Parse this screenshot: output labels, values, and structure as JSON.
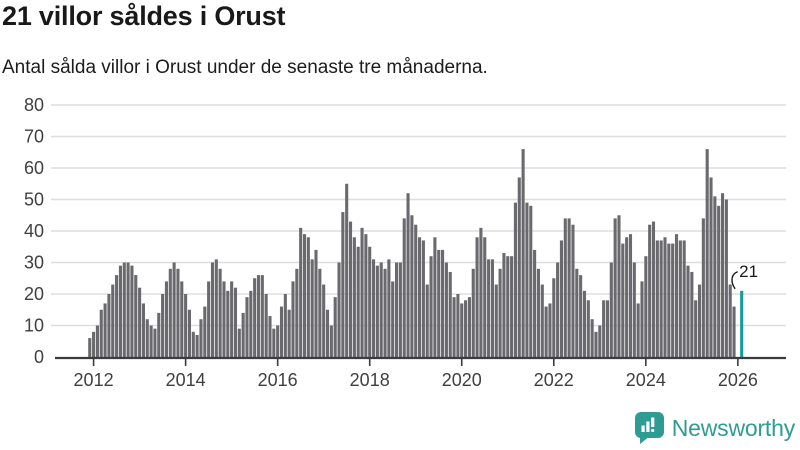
{
  "header": {
    "title": "21 villor såldes i Orust",
    "subtitle": "Antal sålda villor i Orust under de senaste tre månaderna."
  },
  "footer": {
    "brand": "Newsworthy"
  },
  "colors": {
    "bar": "#6a6a6e",
    "highlight": "#149b9c",
    "grid": "#dedede",
    "axis": "#3c3c3c",
    "tick_label": "#404040",
    "annotation": "#1a1a1a",
    "brand": "#2f9c94"
  },
  "chart_data": {
    "type": "bar",
    "title": "21 villor såldes i Orust",
    "subtitle": "Antal sålda villor i Orust under de senaste tre månaderna.",
    "ylabel": "",
    "xlabel": "",
    "ylim": [
      0,
      80
    ],
    "grid": true,
    "y_ticks": [
      0,
      10,
      20,
      30,
      40,
      50,
      60,
      70,
      80
    ],
    "x_ticks": [
      {
        "label": "2012",
        "index": 1
      },
      {
        "label": "2014",
        "index": 25
      },
      {
        "label": "2016",
        "index": 49
      },
      {
        "label": "2018",
        "index": 73
      },
      {
        "label": "2020",
        "index": 97
      },
      {
        "label": "2022",
        "index": 121
      },
      {
        "label": "2024",
        "index": 145
      },
      {
        "label": "2026",
        "index": 169
      }
    ],
    "values": [
      6,
      8,
      10,
      15,
      17,
      20,
      23,
      26,
      29,
      30,
      30,
      29,
      26,
      22,
      17,
      12,
      10,
      9,
      14,
      20,
      24,
      28,
      30,
      28,
      24,
      20,
      15,
      8,
      7,
      12,
      16,
      24,
      30,
      31,
      28,
      24,
      21,
      24,
      22,
      9,
      14,
      19,
      21,
      25,
      26,
      26,
      20,
      13,
      9,
      10,
      16,
      20,
      15,
      24,
      28,
      41,
      39,
      38,
      31,
      34,
      28,
      23,
      15,
      10,
      19,
      30,
      46,
      55,
      43,
      38,
      35,
      41,
      39,
      35,
      31,
      29,
      30,
      28,
      31,
      24,
      30,
      30,
      44,
      52,
      45,
      42,
      38,
      37,
      23,
      32,
      38,
      34,
      34,
      30,
      27,
      19,
      20,
      17,
      18,
      19,
      28,
      38,
      41,
      38,
      31,
      31,
      23,
      28,
      33,
      32,
      32,
      49,
      57,
      66,
      49,
      48,
      34,
      28,
      23,
      16,
      17,
      25,
      30,
      37,
      44,
      44,
      42,
      28,
      26,
      21,
      18,
      12,
      8,
      10,
      18,
      18,
      30,
      44,
      45,
      36,
      38,
      39,
      30,
      17,
      24,
      32,
      42,
      43,
      37,
      37,
      38,
      36,
      36,
      39,
      37,
      37,
      29,
      27,
      18,
      23,
      44,
      66,
      57,
      51,
      48,
      52,
      50,
      23,
      16,
      null,
      21
    ],
    "highlight": {
      "index": 170,
      "value": 21,
      "label": "21"
    }
  }
}
